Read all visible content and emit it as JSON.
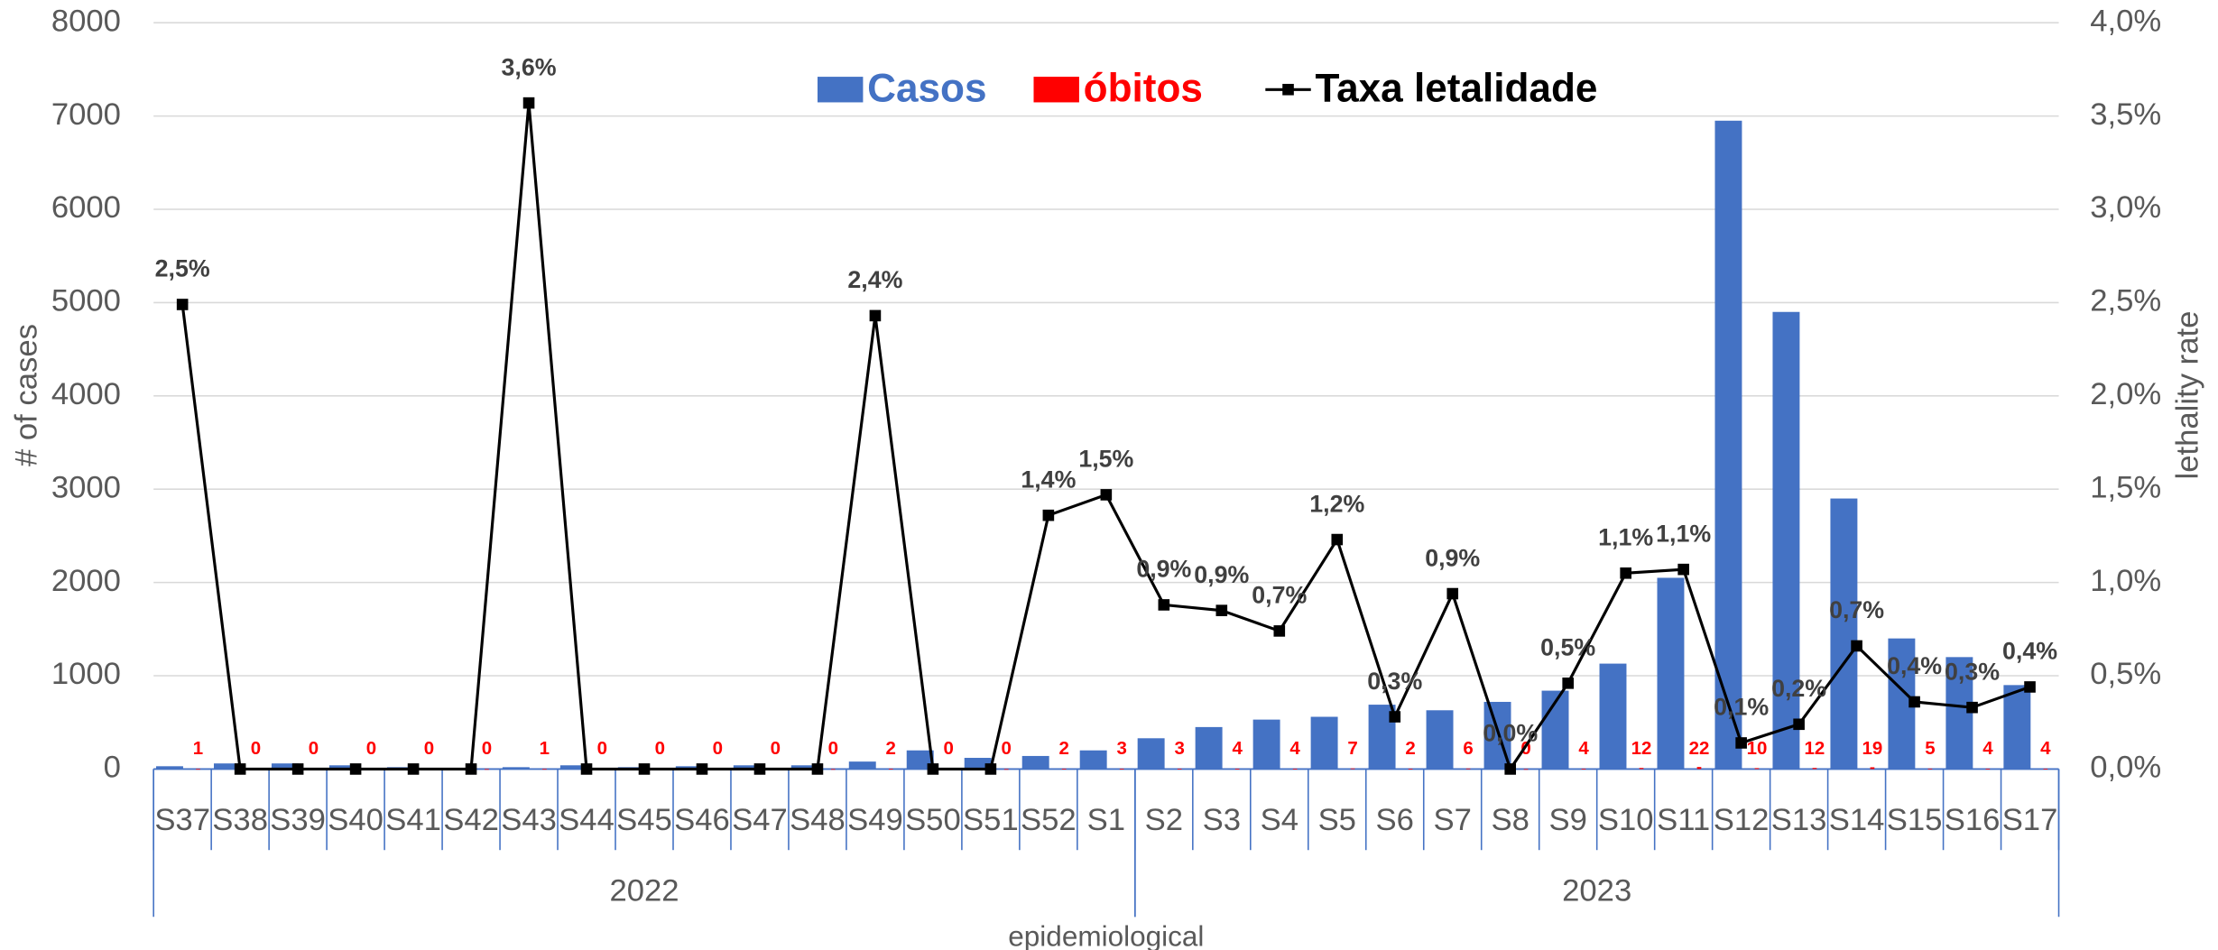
{
  "chart_data": {
    "type": "bar_line",
    "y_label": "# of cases",
    "y2_label": "lethality rate",
    "x_label": "epidemiological",
    "categories": [
      "S37",
      "S38",
      "S39",
      "S40",
      "S41",
      "S42",
      "S43",
      "S44",
      "S45",
      "S46",
      "S47",
      "S48",
      "S49",
      "S50",
      "S51",
      "S52",
      "S1",
      "S2",
      "S3",
      "S4",
      "S5",
      "S6",
      "S7",
      "S8",
      "S9",
      "S10",
      "S11",
      "S12",
      "S13",
      "S14",
      "S15",
      "S16",
      "S17"
    ],
    "groups": [
      {
        "label": "2022",
        "size": 17
      },
      {
        "label": "2023",
        "size": 16
      }
    ],
    "series": [
      {
        "name": "Casos",
        "type": "bar",
        "color": "#4472c4",
        "values": [
          30,
          60,
          60,
          40,
          20,
          10,
          20,
          40,
          20,
          30,
          40,
          40,
          80,
          200,
          120,
          140,
          200,
          330,
          450,
          530,
          560,
          690,
          630,
          720,
          840,
          1130,
          2050,
          6950,
          4900,
          2900,
          1400,
          1200,
          900
        ]
      },
      {
        "name": "óbitos",
        "type": "bar",
        "color": "#ff0000",
        "data_labels": true,
        "values": [
          1,
          0,
          0,
          0,
          0,
          0,
          1,
          0,
          0,
          0,
          0,
          0,
          2,
          0,
          0,
          2,
          3,
          3,
          4,
          4,
          7,
          2,
          6,
          0,
          4,
          12,
          22,
          10,
          12,
          19,
          5,
          4,
          4
        ]
      },
      {
        "name": "Taxa letalidade",
        "type": "line",
        "axis": "y2",
        "color": "#000000",
        "values": [
          2.49,
          0,
          0,
          0,
          0,
          0,
          3.57,
          0,
          0,
          0,
          0,
          0,
          2.43,
          0,
          0,
          1.36,
          1.47,
          0.88,
          0.85,
          0.74,
          1.23,
          0.28,
          0.94,
          0,
          0.46,
          1.05,
          1.07,
          0.14,
          0.24,
          0.66,
          0.36,
          0.33,
          0.44
        ],
        "value_labels": [
          "2,5%",
          null,
          null,
          null,
          null,
          null,
          "3,6%",
          null,
          null,
          null,
          null,
          null,
          "2,4%",
          null,
          null,
          "1,4%",
          "1,5%",
          "0,9%",
          "0,9%",
          "0,7%",
          "1,2%",
          "0,3%",
          "0,9%",
          "0,0%",
          "0,5%",
          "1,1%",
          "1,1%",
          "0,1%",
          "0,2%",
          "0,7%",
          "0,4%",
          "0,3%",
          "0,4%"
        ]
      }
    ],
    "ylim": [
      0,
      8000
    ],
    "yticks": [
      0,
      1000,
      2000,
      3000,
      4000,
      5000,
      6000,
      7000,
      8000
    ],
    "y2lim": [
      0,
      4
    ],
    "y2ticks": [
      {
        "value": 0,
        "label": "0,0%"
      },
      {
        "value": 0.5,
        "label": "0,5%"
      },
      {
        "value": 1,
        "label": "1,0%"
      },
      {
        "value": 1.5,
        "label": "1,5%"
      },
      {
        "value": 2,
        "label": "2,0%"
      },
      {
        "value": 2.5,
        "label": "2,5%"
      },
      {
        "value": 3,
        "label": "3,0%"
      },
      {
        "value": 3.5,
        "label": "3,5%"
      },
      {
        "value": 4,
        "label": "4,0%"
      }
    ],
    "grid": true
  }
}
